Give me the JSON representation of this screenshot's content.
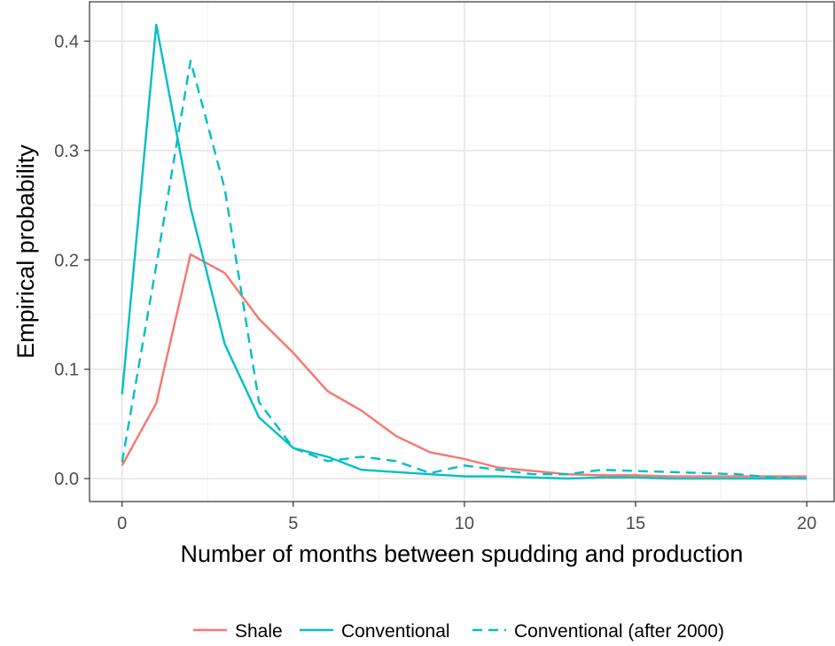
{
  "chart_data": {
    "type": "line",
    "xlabel": "Number of months between spudding and production",
    "ylabel": "Empirical probability",
    "xlim": [
      -0.95,
      20.8
    ],
    "ylim": [
      -0.021,
      0.436
    ],
    "x_ticks": [
      0,
      5,
      10,
      15,
      20
    ],
    "x_tick_labels": [
      "0",
      "5",
      "10",
      "15",
      "20"
    ],
    "y_ticks": [
      0.0,
      0.1,
      0.2,
      0.3,
      0.4
    ],
    "y_tick_labels": [
      "0.0",
      "0.1",
      "0.2",
      "0.3",
      "0.4"
    ],
    "grid": true,
    "legend_position": "bottom",
    "x": [
      0,
      1,
      2,
      3,
      4,
      5,
      6,
      7,
      8,
      9,
      10,
      11,
      12,
      13,
      14,
      15,
      16,
      17,
      18,
      19,
      20
    ],
    "series": [
      {
        "name": "Shale",
        "color": "#F8766D",
        "dash": "solid",
        "values": [
          0.012,
          0.069,
          0.205,
          0.188,
          0.146,
          0.115,
          0.08,
          0.062,
          0.039,
          0.024,
          0.018,
          0.01,
          0.007,
          0.004,
          0.003,
          0.003,
          0.002,
          0.002,
          0.002,
          0.002,
          0.002
        ]
      },
      {
        "name": "Conventional",
        "color": "#00BFC4",
        "dash": "solid",
        "values": [
          0.077,
          0.415,
          0.248,
          0.123,
          0.056,
          0.028,
          0.02,
          0.008,
          0.006,
          0.004,
          0.002,
          0.002,
          0.001,
          0.0,
          0.001,
          0.001,
          0.0,
          0.0,
          0.0,
          0.0,
          0.0
        ]
      },
      {
        "name": "Conventional (after 2000)",
        "color": "#00BFC4",
        "dash": "dashed",
        "values": [
          0.015,
          0.195,
          0.382,
          0.265,
          0.07,
          0.028,
          0.016,
          0.02,
          0.016,
          0.005,
          0.012,
          0.008,
          0.004,
          0.004,
          0.008,
          0.007,
          0.006,
          0.005,
          0.004,
          0.001,
          0.0
        ]
      }
    ]
  }
}
